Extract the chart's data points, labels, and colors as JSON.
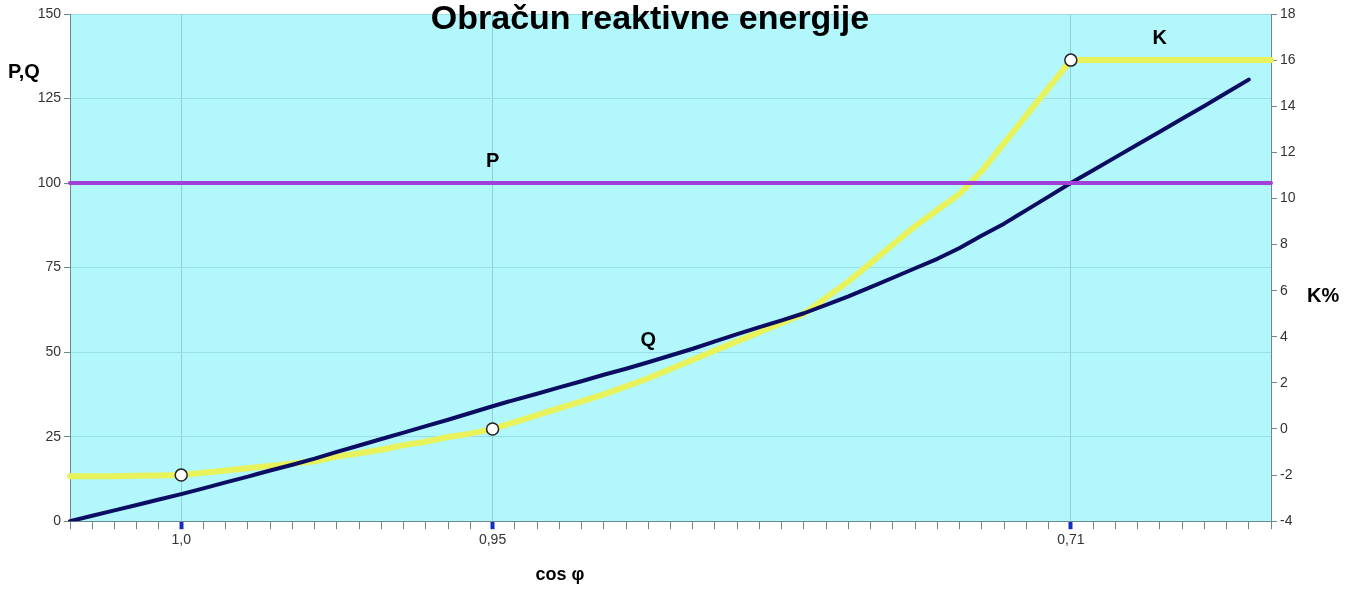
{
  "chart_data": {
    "type": "line",
    "title": "Obračun reaktivne energije",
    "xlabel": "cos φ",
    "ylabel": "P,Q",
    "y2label": "K%",
    "categories": [
      null,
      null,
      null,
      null,
      null,
      "1,0",
      null,
      null,
      null,
      null,
      null,
      null,
      null,
      null,
      null,
      null,
      null,
      null,
      null,
      "0,95",
      null,
      null,
      null,
      null,
      null,
      null,
      null,
      null,
      null,
      null,
      null,
      null,
      null,
      null,
      null,
      null,
      null,
      null,
      null,
      null,
      null,
      null,
      null,
      null,
      null,
      "0,71",
      null,
      null,
      null,
      null,
      null,
      null,
      null,
      null,
      null
    ],
    "ylim": [
      0,
      150
    ],
    "yticks": [
      0,
      25,
      50,
      75,
      100,
      125,
      150
    ],
    "y2lim": [
      -4,
      18
    ],
    "y2ticks": [
      -4,
      -2,
      0,
      2,
      4,
      6,
      8,
      10,
      12,
      14,
      16,
      18
    ],
    "grid": true,
    "marker": "none",
    "line_style": "solid",
    "series": [
      {
        "name": "P",
        "color": "#a040d8",
        "values": [
          100,
          100,
          100,
          100,
          100,
          100,
          100,
          100,
          100,
          100,
          100,
          100,
          100,
          100,
          100,
          100,
          100,
          100,
          100,
          100,
          100,
          100,
          100,
          100,
          100,
          100,
          100,
          100,
          100,
          100,
          100,
          100,
          100,
          100,
          100,
          100,
          100,
          100,
          100,
          100,
          100,
          100,
          100,
          100,
          100,
          100,
          100,
          100,
          100,
          100,
          100,
          100,
          100,
          100,
          100
        ]
      },
      {
        "name": "Q",
        "color": "#0c0c62",
        "values": [
          0,
          1.6,
          3.2,
          4.8,
          6.4,
          8,
          9.7,
          11.5,
          13.2,
          15,
          16.7,
          18.5,
          20.5,
          22.4,
          24.3,
          26.2,
          28.1,
          30,
          32,
          34,
          35.9,
          37.7,
          39.6,
          41.4,
          43.3,
          45.1,
          47,
          49,
          51,
          53.2,
          55.3,
          57.4,
          59.4,
          61.5,
          64,
          66.5,
          69.2,
          72,
          74.8,
          77.6,
          80.8,
          84.5,
          88,
          92,
          96,
          100,
          103.8,
          107.6,
          111.4,
          115.2,
          119,
          122.8,
          126.7,
          130.6,
          null
        ]
      },
      {
        "name": "K",
        "color": "#e8f25a",
        "axis": "y2",
        "values": [
          -2.05,
          -2.05,
          -2.05,
          -2.03,
          -2.02,
          -2,
          -1.9,
          -1.8,
          -1.7,
          -1.6,
          -1.5,
          -1.4,
          -1.2,
          -1.05,
          -0.9,
          -0.7,
          -0.55,
          -0.35,
          -0.2,
          0,
          0.3,
          0.6,
          0.9,
          1.2,
          1.5,
          1.85,
          2.2,
          2.6,
          3,
          3.4,
          3.8,
          4.2,
          4.6,
          5,
          5.7,
          6.4,
          7.2,
          8,
          8.8,
          9.5,
          10.2,
          11.2,
          12.4,
          13.6,
          14.8,
          16,
          16,
          16,
          16,
          16,
          16,
          16,
          16,
          16,
          16
        ]
      },
      {
        "type": "scatter",
        "color": "#ffffff",
        "axis": "y2",
        "marker": "circle",
        "x": [
          "1,0",
          "0,95",
          "0,71"
        ],
        "values": [
          -2,
          0,
          16
        ]
      }
    ]
  }
}
